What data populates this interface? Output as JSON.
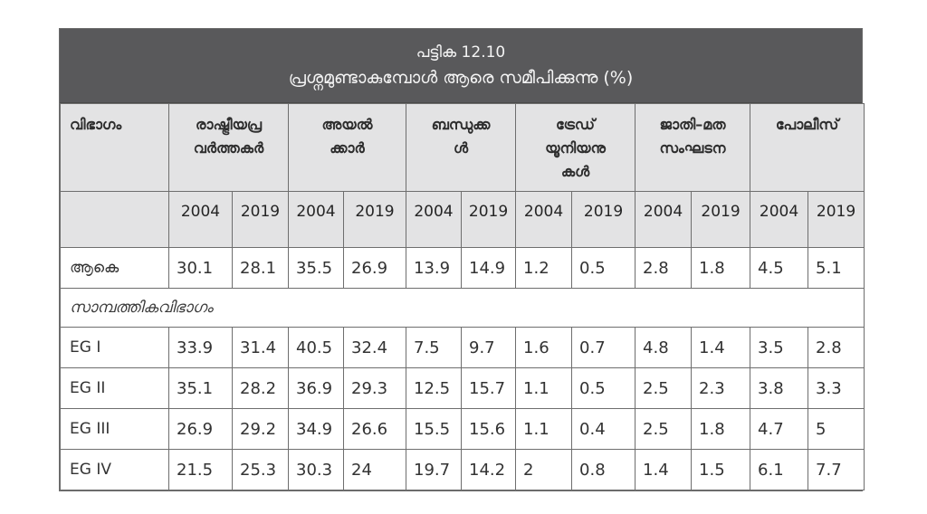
{
  "title": {
    "label": "പട്ടിക 12.10",
    "caption": "പ്രശ്നമുണ്ടാകുമ്പോൾ ആരെ സമീപിക്കുന്നു (%)"
  },
  "columns": {
    "category": "വിഭാഗം",
    "groups": [
      {
        "line1": "രാഷ്ട്രീയപ്ര",
        "line2": "വർത്തകർ",
        "line3": ""
      },
      {
        "line1": "അയൽ",
        "line2": "ക്കാർ",
        "line3": ""
      },
      {
        "line1": "ബന്ധുക്ക",
        "line2": "ൾ",
        "line3": ""
      },
      {
        "line1": "ട്രേഡ്",
        "line2": "യൂനിയനു",
        "line3": "കൾ"
      },
      {
        "line1": "ജാതി–മത",
        "line2": "സംഘടന",
        "line3": ""
      },
      {
        "line1": "പോലീസ്",
        "line2": "",
        "line3": ""
      }
    ],
    "years": [
      "2004",
      "2019",
      "2004",
      "2019",
      "2004",
      "2019",
      "2004",
      "2019",
      "2004",
      "2019",
      "2004",
      "2019"
    ]
  },
  "rows": {
    "total": {
      "label": "ആകെ",
      "values": [
        "30.1",
        "28.1",
        "35.5",
        "26.9",
        "13.9",
        "14.9",
        "1.2",
        "0.5",
        "2.8",
        "1.8",
        "4.5",
        "5.1"
      ]
    },
    "section_label": "സാമ്പത്തികവിഭാഗം",
    "groups": [
      {
        "label": "EG I",
        "values": [
          "33.9",
          "31.4",
          "40.5",
          "32.4",
          "7.5",
          "9.7",
          "1.6",
          "0.7",
          "4.8",
          "1.4",
          "3.5",
          "2.8"
        ]
      },
      {
        "label": "EG II",
        "values": [
          "35.1",
          "28.2",
          "36.9",
          "29.3",
          "12.5",
          "15.7",
          "1.1",
          "0.5",
          "2.5",
          "2.3",
          "3.8",
          "3.3"
        ]
      },
      {
        "label": "EG III",
        "values": [
          "26.9",
          "29.2",
          "34.9",
          "26.6",
          "15.5",
          "15.6",
          "1.1",
          "0.4",
          "2.5",
          "1.8",
          "4.7",
          "5"
        ]
      },
      {
        "label": "EG IV",
        "values": [
          "21.5",
          "25.3",
          "30.3",
          "24",
          "19.7",
          "14.2",
          "2",
          "0.8",
          "1.4",
          "1.5",
          "6.1",
          "7.7"
        ]
      }
    ]
  },
  "colors": {
    "title_band": "#59595b",
    "header_bg": "#e3e3e4",
    "border": "#6e6e6e"
  }
}
